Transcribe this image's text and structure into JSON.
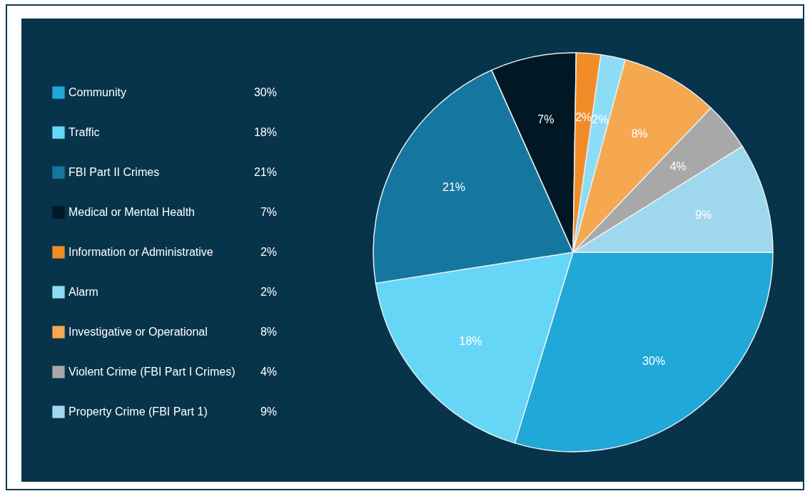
{
  "chart_data": {
    "type": "pie",
    "categories": [
      "Community",
      "Traffic",
      "FBI Part II Crimes",
      "Medical or Mental Health",
      "Information or Administrative",
      "Alarm",
      "Investigative or Operational",
      "Violent Crime (FBI Part I Crimes)",
      "Property Crime (FBI Part 1)"
    ],
    "values": [
      30,
      18,
      21,
      7,
      2,
      2,
      8,
      4,
      9
    ],
    "value_labels": [
      "30%",
      "18%",
      "21%",
      "7%",
      "2%",
      "2%",
      "8%",
      "4%",
      "9%"
    ],
    "colors": [
      "#1fa8d8",
      "#66d6f7",
      "#1577a0",
      "#001824",
      "#f28c28",
      "#8ddcf5",
      "#f5a850",
      "#a8a8a8",
      "#9fd8ee"
    ],
    "legend": "left"
  }
}
